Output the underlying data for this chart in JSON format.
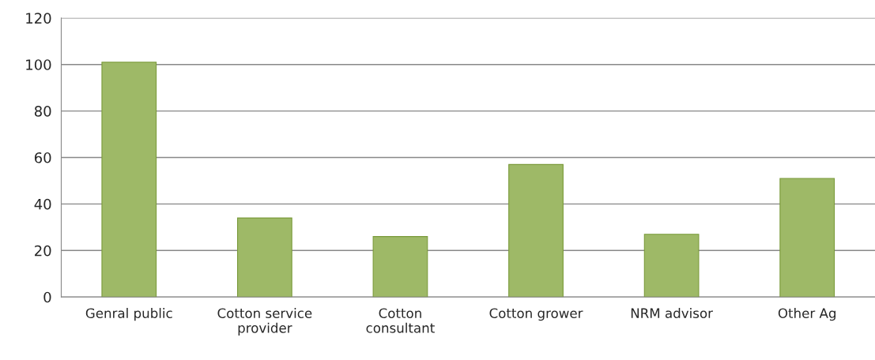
{
  "chart_data": {
    "type": "bar",
    "categories": [
      "Genral public",
      "Cotton service\nprovider",
      "Cotton\nconsultant",
      "Cotton grower",
      "NRM advisor",
      "Other Ag"
    ],
    "values": [
      101,
      34,
      26,
      57,
      27,
      51
    ],
    "color": "#a3c65a",
    "ylim": [
      0,
      120
    ],
    "yticks": [
      0,
      20,
      40,
      60,
      80,
      100,
      120
    ],
    "grid": "y",
    "legend": false
  }
}
